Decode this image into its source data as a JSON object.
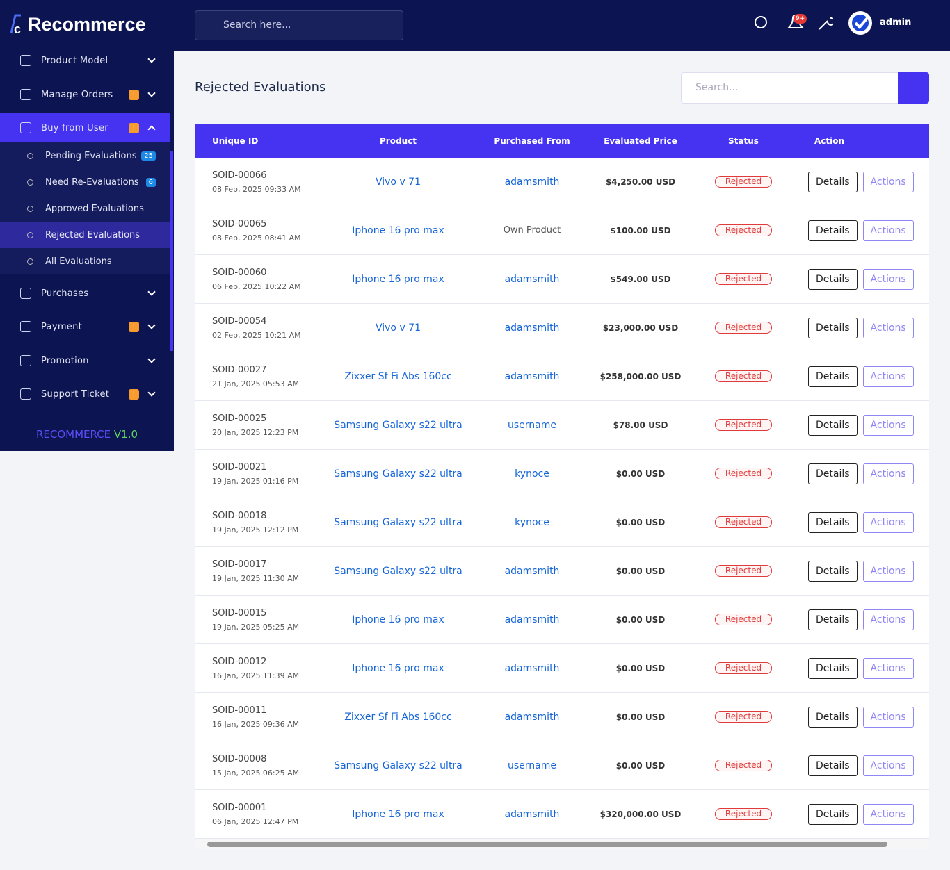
{
  "brand": "Recommerce",
  "topbar": {
    "search_placeholder": "Search here...",
    "notification_badge": "9+",
    "user": "admin"
  },
  "sidebar": {
    "items": [
      {
        "label": "Product Model",
        "badge": null,
        "expanded": false
      },
      {
        "label": "Manage Orders",
        "badge": "!",
        "expanded": false
      },
      {
        "label": "Buy from User",
        "badge": "!",
        "expanded": true,
        "active": true,
        "children": [
          {
            "label": "Pending Evaluations",
            "badge": "25"
          },
          {
            "label": "Need Re-Evaluations",
            "badge": "6"
          },
          {
            "label": "Approved Evaluations",
            "badge": null
          },
          {
            "label": "Rejected Evaluations",
            "badge": null,
            "active": true
          },
          {
            "label": "All Evaluations",
            "badge": null
          }
        ]
      },
      {
        "label": "Purchases",
        "badge": null,
        "expanded": false
      },
      {
        "label": "Payment",
        "badge": "!",
        "expanded": false
      },
      {
        "label": "Promotion",
        "badge": null,
        "expanded": false
      },
      {
        "label": "Support Ticket",
        "badge": "!",
        "expanded": false
      }
    ],
    "footer": {
      "name": "RECOMMERCE",
      "version": "V1.0"
    }
  },
  "page": {
    "title": "Rejected Evaluations",
    "search_placeholder": "Search..."
  },
  "table": {
    "headers": [
      "Unique ID",
      "Product",
      "Purchased From",
      "Evaluated Price",
      "Status",
      "Action"
    ],
    "buttons": {
      "details": "Details",
      "actions": "Actions"
    },
    "rows": [
      {
        "id": "SOID-00066",
        "date": "08 Feb, 2025 09:33 AM",
        "product": "Vivo v 71",
        "from": "adamsmith",
        "price": "$4,250.00 USD",
        "status": "Rejected"
      },
      {
        "id": "SOID-00065",
        "date": "08 Feb, 2025 08:41 AM",
        "product": "Iphone 16 pro max",
        "from": "Own Product",
        "price": "$100.00 USD",
        "status": "Rejected"
      },
      {
        "id": "SOID-00060",
        "date": "06 Feb, 2025 10:22 AM",
        "product": "Iphone 16 pro max",
        "from": "adamsmith",
        "price": "$549.00 USD",
        "status": "Rejected"
      },
      {
        "id": "SOID-00054",
        "date": "02 Feb, 2025 10:21 AM",
        "product": "Vivo v 71",
        "from": "adamsmith",
        "price": "$23,000.00 USD",
        "status": "Rejected"
      },
      {
        "id": "SOID-00027",
        "date": "21 Jan, 2025 05:53 AM",
        "product": "Zixxer Sf Fi Abs 160cc",
        "from": "adamsmith",
        "price": "$258,000.00 USD",
        "status": "Rejected"
      },
      {
        "id": "SOID-00025",
        "date": "20 Jan, 2025 12:23 PM",
        "product": "Samsung Galaxy s22 ultra",
        "from": "username",
        "price": "$78.00 USD",
        "status": "Rejected"
      },
      {
        "id": "SOID-00021",
        "date": "19 Jan, 2025 01:16 PM",
        "product": "Samsung Galaxy s22 ultra",
        "from": "kynoce",
        "price": "$0.00 USD",
        "status": "Rejected"
      },
      {
        "id": "SOID-00018",
        "date": "19 Jan, 2025 12:12 PM",
        "product": "Samsung Galaxy s22 ultra",
        "from": "kynoce",
        "price": "$0.00 USD",
        "status": "Rejected"
      },
      {
        "id": "SOID-00017",
        "date": "19 Jan, 2025 11:30 AM",
        "product": "Samsung Galaxy s22 ultra",
        "from": "adamsmith",
        "price": "$0.00 USD",
        "status": "Rejected"
      },
      {
        "id": "SOID-00015",
        "date": "19 Jan, 2025 05:25 AM",
        "product": "Iphone 16 pro max",
        "from": "adamsmith",
        "price": "$0.00 USD",
        "status": "Rejected"
      },
      {
        "id": "SOID-00012",
        "date": "16 Jan, 2025 11:39 AM",
        "product": "Iphone 16 pro max",
        "from": "adamsmith",
        "price": "$0.00 USD",
        "status": "Rejected"
      },
      {
        "id": "SOID-00011",
        "date": "16 Jan, 2025 09:36 AM",
        "product": "Zixxer Sf Fi Abs 160cc",
        "from": "adamsmith",
        "price": "$0.00 USD",
        "status": "Rejected"
      },
      {
        "id": "SOID-00008",
        "date": "15 Jan, 2025 06:25 AM",
        "product": "Samsung Galaxy s22 ultra",
        "from": "username",
        "price": "$0.00 USD",
        "status": "Rejected"
      },
      {
        "id": "SOID-00001",
        "date": "06 Jan, 2025 12:47 PM",
        "product": "Iphone 16 pro max",
        "from": "adamsmith",
        "price": "$320,000.00 USD",
        "status": "Rejected"
      }
    ]
  }
}
